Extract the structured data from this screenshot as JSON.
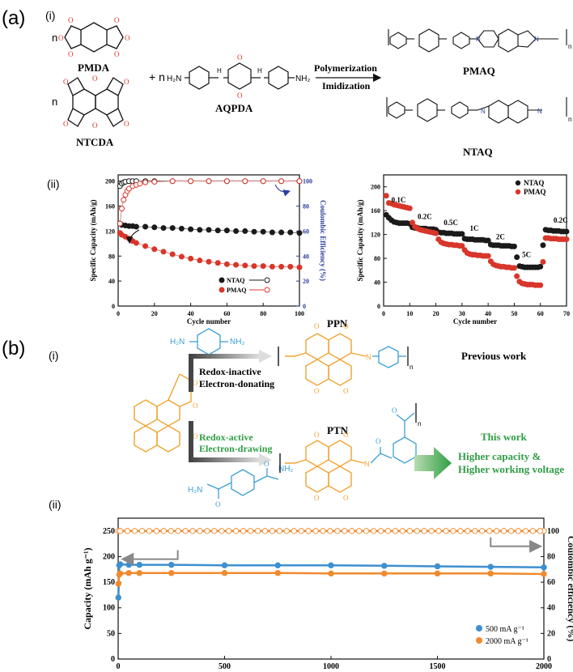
{
  "panel_a": {
    "label": "(a)",
    "sub_i": "(i)",
    "sub_ii": "(ii)",
    "reaction": {
      "coef_n": "n",
      "plus_n": "+ n",
      "monomer_pmda": "PMDA",
      "monomer_ntcda": "NTCDA",
      "monomer_aqpda": "AQPDA",
      "h2n": "H₂N",
      "nh2": "NH₂",
      "h": "H",
      "n_atom": "N",
      "o_atom": "O",
      "polymer_n": "n",
      "arrow_top": "Polymerization",
      "arrow_bottom": "Imidization",
      "product_pmaq": "PMAQ",
      "product_ntaq": "NTAQ"
    }
  },
  "panel_b": {
    "label": "(b)",
    "sub_i": "(i)",
    "sub_ii": "(ii)",
    "scheme": {
      "nh2": "NH₂",
      "h2n": "H₂N",
      "o_atom": "O",
      "n_atom": "N",
      "polymer_n": "n",
      "route_top_1": "Redox-inactive",
      "route_top_2": "Electron-donating",
      "route_bottom_1": "Redox-active",
      "route_bottom_2": "Electron-drawing",
      "polymer_top": "PPN",
      "polymer_bottom": "PTN",
      "previous": "Previous work",
      "this_work": "This work",
      "claim_1": "Higher capacity &",
      "claim_2": "Higher working voltage"
    }
  },
  "colors": {
    "red": "#d8362b",
    "black": "#1a1a1a",
    "blue_axis": "#2b3f9f",
    "orange_chem": "#f0a330",
    "blue_chem": "#3d9fd6",
    "green": "#2f9e45",
    "pt_orange": "#f08a2e",
    "pt_blue": "#3d8fd0"
  },
  "chart_data": [
    {
      "id": "cycling",
      "type": "scatter",
      "title": "",
      "xlabel": "Cycle number",
      "ylabel": "Specific Capacity (mAh/g)",
      "y2label": "Coulombic Efficiency (%)",
      "xlim": [
        0,
        100
      ],
      "ylim": [
        0,
        210
      ],
      "y2lim": [
        0,
        105
      ],
      "xticks": [
        "0",
        "20",
        "40",
        "60",
        "80",
        "100"
      ],
      "yticks": [
        "0",
        "40",
        "80",
        "120",
        "160",
        "200"
      ],
      "y2ticks": [
        "0",
        "20",
        "40",
        "60",
        "80",
        "100"
      ],
      "legend": [
        "NTAQ",
        "PMAQ"
      ],
      "legend_position": "bottom-right",
      "series": [
        {
          "name": "NTAQ capacity",
          "color": "#1a1a1a",
          "x": [
            1,
            2,
            4,
            6,
            8,
            10,
            15,
            20,
            25,
            30,
            35,
            40,
            45,
            50,
            55,
            60,
            65,
            70,
            75,
            80,
            85,
            90,
            95,
            100
          ],
          "values": [
            132,
            130,
            129,
            128,
            128,
            127,
            127,
            126,
            125,
            125,
            124,
            123,
            122,
            122,
            121,
            121,
            120,
            120,
            119,
            119,
            118,
            118,
            118,
            117
          ]
        },
        {
          "name": "PMAQ capacity",
          "color": "#d8362b",
          "x": [
            1,
            2,
            4,
            6,
            8,
            10,
            15,
            20,
            25,
            30,
            35,
            40,
            45,
            50,
            55,
            60,
            65,
            70,
            75,
            80,
            85,
            90,
            95,
            100
          ],
          "values": [
            117,
            114,
            111,
            108,
            104,
            101,
            96,
            91,
            87,
            83,
            79,
            76,
            73,
            71,
            69,
            67,
            66,
            65,
            64,
            64,
            63,
            63,
            63,
            62
          ]
        },
        {
          "name": "NTAQ CE",
          "color": "#1a1a1a",
          "x": [
            1,
            2,
            3,
            4,
            6,
            8,
            10,
            15,
            20,
            30,
            40,
            50,
            60,
            70,
            80,
            90,
            100
          ],
          "values": [
            96,
            98,
            99,
            99.5,
            100,
            100,
            100,
            100,
            100,
            100,
            100,
            100,
            100,
            100,
            100,
            100,
            100
          ]
        },
        {
          "name": "PMAQ CE",
          "color": "#d8362b",
          "x": [
            1,
            2,
            3,
            4,
            5,
            6,
            8,
            10,
            12,
            15,
            20,
            30,
            40,
            50,
            60,
            70,
            80,
            90,
            100
          ],
          "values": [
            66,
            78,
            85,
            89,
            92,
            94,
            96,
            97,
            98,
            99,
            99.5,
            100,
            100,
            100,
            100,
            100,
            100,
            100,
            100
          ]
        }
      ],
      "annotations": []
    },
    {
      "id": "rate",
      "type": "scatter",
      "xlabel": "Cycle number",
      "ylabel": "Specific Capacity (mAh/g)",
      "xlim": [
        0,
        70
      ],
      "ylim": [
        0,
        220
      ],
      "xticks": [
        "0",
        "10",
        "20",
        "30",
        "40",
        "50",
        "60",
        "70"
      ],
      "yticks": [
        "0",
        "40",
        "80",
        "120",
        "160",
        "200"
      ],
      "legend": [
        "NTAQ",
        "PMAQ"
      ],
      "legend_position": "top-right",
      "rates": [
        "0.1C",
        "0.2C",
        "0.5C",
        "1C",
        "2C",
        "5C",
        "0.2C"
      ],
      "series": [
        {
          "name": "NTAQ",
          "color": "#1a1a1a",
          "x": [
            1,
            2,
            3,
            4,
            5,
            6,
            7,
            8,
            9,
            10,
            11,
            12,
            13,
            14,
            15,
            16,
            17,
            18,
            19,
            20,
            21,
            22,
            23,
            24,
            25,
            26,
            27,
            28,
            29,
            30,
            31,
            32,
            33,
            34,
            35,
            36,
            37,
            38,
            39,
            40,
            41,
            42,
            43,
            44,
            45,
            46,
            47,
            48,
            49,
            50,
            51,
            52,
            53,
            54,
            55,
            56,
            57,
            58,
            59,
            60,
            61,
            62,
            63,
            64,
            65,
            66,
            67,
            68,
            69,
            70
          ],
          "values": [
            153,
            148,
            144,
            141,
            140,
            139,
            139,
            139,
            139,
            138,
            132,
            131,
            131,
            130,
            130,
            130,
            129,
            129,
            129,
            128,
            124,
            123,
            123,
            122,
            122,
            122,
            121,
            121,
            121,
            121,
            113,
            112,
            112,
            112,
            111,
            111,
            111,
            111,
            110,
            110,
            103,
            102,
            102,
            102,
            101,
            101,
            101,
            101,
            100,
            100,
            82,
            67,
            66,
            65,
            65,
            65,
            65,
            65,
            65,
            66,
            102,
            128,
            127,
            127,
            126,
            126,
            126,
            125,
            125,
            125
          ]
        },
        {
          "name": "PMAQ",
          "color": "#d8362b",
          "x": [
            1,
            2,
            3,
            4,
            5,
            6,
            7,
            8,
            9,
            10,
            11,
            12,
            13,
            14,
            15,
            16,
            17,
            18,
            19,
            20,
            21,
            22,
            23,
            24,
            25,
            26,
            27,
            28,
            29,
            30,
            31,
            32,
            33,
            34,
            35,
            36,
            37,
            38,
            39,
            40,
            41,
            42,
            43,
            44,
            45,
            46,
            47,
            48,
            49,
            50,
            51,
            52,
            53,
            54,
            55,
            56,
            57,
            58,
            59,
            60,
            61,
            62,
            63,
            64,
            65,
            66,
            67,
            68,
            69,
            70
          ],
          "values": [
            185,
            173,
            172,
            170,
            169,
            168,
            167,
            166,
            165,
            164,
            140,
            133,
            130,
            128,
            127,
            126,
            125,
            124,
            123,
            122,
            112,
            107,
            105,
            104,
            103,
            103,
            102,
            102,
            101,
            101,
            94,
            89,
            87,
            86,
            86,
            85,
            85,
            84,
            84,
            84,
            75,
            70,
            68,
            67,
            66,
            66,
            65,
            65,
            64,
            64,
            50,
            41,
            38,
            37,
            36,
            36,
            36,
            35,
            35,
            35,
            74,
            114,
            114,
            113,
            113,
            113,
            112,
            112,
            112,
            112
          ]
        }
      ]
    },
    {
      "id": "ptn_long",
      "type": "scatter",
      "xlabel": "Cycle number",
      "ylabel": "Capacity (mAh g⁻¹)",
      "y2label": "Coulombic efficiency (%)",
      "xlim": [
        0,
        2000
      ],
      "ylim": [
        0,
        275
      ],
      "y2lim": [
        0,
        110
      ],
      "xticks": [
        "0",
        "500",
        "1000",
        "1500",
        "2000"
      ],
      "yticks": [
        "0",
        "50",
        "100",
        "150",
        "200",
        "250"
      ],
      "y2ticks": [
        "0",
        "20",
        "40",
        "60",
        "80",
        "100"
      ],
      "legend": [
        "500 mA g⁻¹",
        "2000 mA g⁻¹"
      ],
      "legend_position": "bottom-right",
      "series": [
        {
          "name": "500 mA g⁻¹ capacity",
          "color": "#3d8fd0",
          "x": [
            1,
            5,
            10,
            50,
            100,
            250,
            500,
            750,
            1000,
            1250,
            1500,
            1750,
            2000
          ],
          "values": [
            120,
            183,
            185,
            184,
            184,
            184,
            183,
            183,
            183,
            182,
            181,
            180,
            179
          ]
        },
        {
          "name": "2000 mA g⁻¹ capacity",
          "color": "#f08a2e",
          "x": [
            1,
            5,
            10,
            50,
            100,
            250,
            500,
            750,
            1000,
            1250,
            1500,
            1750,
            2000
          ],
          "values": [
            147,
            165,
            167,
            168,
            168,
            168,
            168,
            168,
            167,
            167,
            167,
            167,
            166
          ]
        },
        {
          "name": "2000 mA g⁻¹ CE",
          "color": "#f08a2e",
          "x": [
            1,
            2000
          ],
          "values": [
            100,
            100
          ]
        }
      ]
    }
  ]
}
